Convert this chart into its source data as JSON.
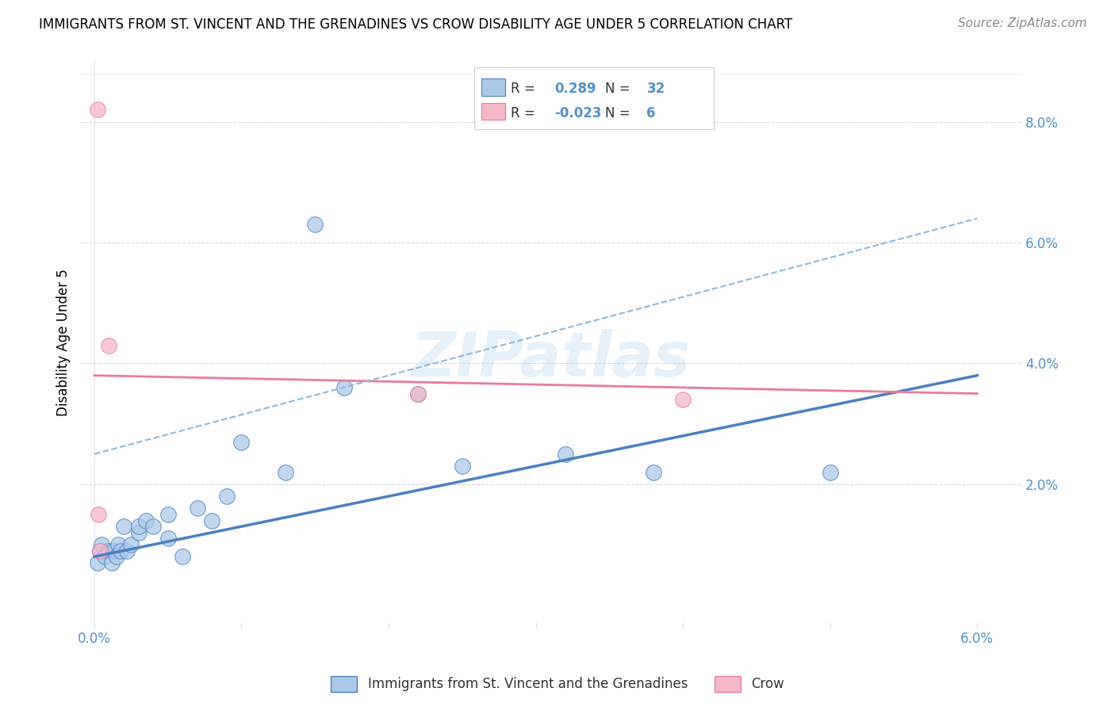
{
  "title": "IMMIGRANTS FROM ST. VINCENT AND THE GRENADINES VS CROW DISABILITY AGE UNDER 5 CORRELATION CHART",
  "source": "Source: ZipAtlas.com",
  "ylabel": "Disability Age Under 5",
  "legend_blue_r": "0.289",
  "legend_blue_n": "32",
  "legend_pink_r": "-0.023",
  "legend_pink_n": "6",
  "legend_label_blue": "Immigrants from St. Vincent and the Grenadines",
  "legend_label_pink": "Crow",
  "blue_color": "#aac9e8",
  "pink_color": "#f4b8c8",
  "blue_line_color": "#4a7fc1",
  "pink_line_color": "#e87aa0",
  "dashed_line_color": "#90b8d8",
  "watermark_text": "ZIPatlas",
  "blue_scatter_x": [
    0.0002,
    0.0004,
    0.0005,
    0.0007,
    0.001,
    0.0012,
    0.0013,
    0.0015,
    0.0016,
    0.0018,
    0.002,
    0.0022,
    0.0025,
    0.003,
    0.003,
    0.0035,
    0.004,
    0.005,
    0.005,
    0.006,
    0.007,
    0.008,
    0.009,
    0.01,
    0.013,
    0.015,
    0.017,
    0.022,
    0.025,
    0.032,
    0.038,
    0.05
  ],
  "blue_scatter_y": [
    0.007,
    0.009,
    0.01,
    0.008,
    0.009,
    0.007,
    0.009,
    0.008,
    0.01,
    0.009,
    0.013,
    0.009,
    0.01,
    0.012,
    0.013,
    0.014,
    0.013,
    0.011,
    0.015,
    0.008,
    0.016,
    0.014,
    0.018,
    0.027,
    0.022,
    0.063,
    0.036,
    0.035,
    0.023,
    0.025,
    0.022,
    0.022
  ],
  "pink_scatter_x": [
    0.0002,
    0.0003,
    0.001,
    0.022,
    0.04,
    0.0004
  ],
  "pink_scatter_y": [
    0.082,
    0.015,
    0.043,
    0.035,
    0.034,
    0.009
  ],
  "blue_trendline_x": [
    0.0,
    0.06
  ],
  "blue_trendline_y": [
    0.008,
    0.038
  ],
  "pink_trendline_x": [
    0.0,
    0.06
  ],
  "pink_trendline_y": [
    0.038,
    0.035
  ],
  "dashed_trendline_x": [
    0.0,
    0.06
  ],
  "dashed_trendline_y": [
    0.025,
    0.064
  ],
  "xlim": [
    -0.001,
    0.063
  ],
  "ylim": [
    -0.003,
    0.09
  ],
  "x_tick_positions": [
    0.0,
    0.01,
    0.02,
    0.03,
    0.04,
    0.05,
    0.06
  ],
  "x_tick_labels": [
    "0.0%",
    "",
    "",
    "",
    "",
    "",
    "6.0%"
  ],
  "y_tick_positions": [
    0.0,
    0.02,
    0.04,
    0.06,
    0.08
  ],
  "y_tick_labels": [
    "",
    "2.0%",
    "4.0%",
    "6.0%",
    "8.0%"
  ],
  "tick_color": "#5590c8",
  "grid_color": "#d0d8e0",
  "title_fontsize": 12,
  "source_fontsize": 11,
  "axis_fontsize": 12
}
